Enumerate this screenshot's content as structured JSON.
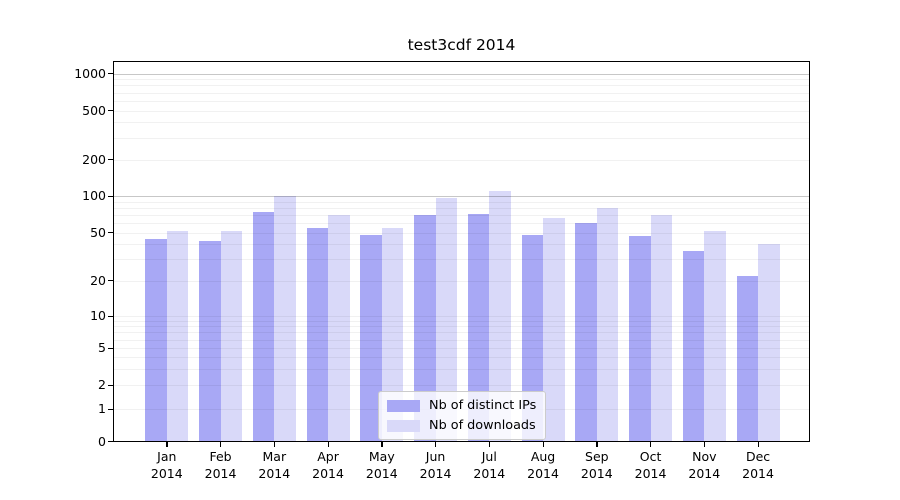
{
  "chart_data": {
    "type": "bar",
    "title": "test3cdf 2014",
    "categories": [
      "Jan 2014",
      "Feb 2014",
      "Mar 2014",
      "Apr 2014",
      "May 2014",
      "Jun 2014",
      "Jul 2014",
      "Aug 2014",
      "Sep 2014",
      "Oct 2014",
      "Nov 2014",
      "Dec 2014"
    ],
    "series": [
      {
        "name": "Nb of distinct IPs",
        "color": "#a8a8f5",
        "values": [
          44,
          43,
          74,
          55,
          48,
          70,
          71,
          48,
          60,
          47,
          35,
          22
        ]
      },
      {
        "name": "Nb of downloads",
        "color": "#d9d9f9",
        "values": [
          52,
          52,
          100,
          70,
          55,
          97,
          110,
          66,
          79,
          70,
          52,
          40
        ]
      }
    ],
    "yticks": [
      0,
      1,
      2,
      5,
      10,
      20,
      50,
      100,
      200,
      500,
      1000
    ],
    "major_gridline_values": [
      100,
      1000
    ],
    "yscale": "symlog",
    "ylim": [
      0,
      1000
    ],
    "grid": "horizontal log minor gridlines on",
    "legend_position": "inside lower-center",
    "colors": {
      "axis": "#000000",
      "major_grid": "#c9c9c9",
      "minor_grid": "#f0f0f0",
      "background": "#ffffff"
    }
  }
}
